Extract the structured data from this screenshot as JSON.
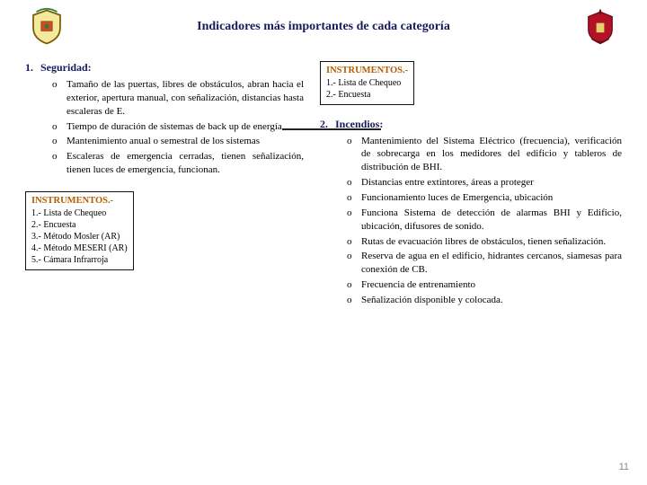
{
  "title": "Indicadores más importantes de cada categoría",
  "page_number": "11",
  "section1": {
    "num": "1.",
    "heading": "Seguridad:",
    "items": [
      "Tamaño de las puertas, libres de obstáculos, abran hacia el exterior, apertura manual, con señalización, distancias hasta escaleras de E.",
      "Tiempo de duración de sistemas de back up de energía",
      "Mantenimiento anual o semestral de los sistemas",
      "Escaleras de emergencia cerradas, tienen señalización, tienen luces de emergencia, funcionan."
    ]
  },
  "instruments_left": {
    "heading": "INSTRUMENTOS.-",
    "lines": [
      "1.- Lista de Chequeo",
      "2.- Encuesta",
      "3.- Método Mosler (AR)",
      "4.- Método MESERI (AR)",
      "5.- Cámara Infrarroja"
    ]
  },
  "instruments_right": {
    "heading": "INSTRUMENTOS.-",
    "lines": [
      "1.- Lista de Chequeo",
      "2.- Encuesta"
    ]
  },
  "section2": {
    "num": "2.",
    "heading": "Incendios:",
    "items": [
      "Mantenimiento del Sistema Eléctrico (frecuencia), verificación de sobrecarga en los medidores del edificio y tableros de distribución de BHI.",
      "Distancias entre extintores, áreas a proteger",
      "Funcionamiento luces de Emergencia, ubicación",
      "Funciona Sistema de detección de alarmas BHI y Edificio, ubicación, difusores de sonido.",
      "Rutas de evacuación libres de obstáculos, tienen señalización.",
      "Reserva de agua en el edificio, hidrantes cercanos, siamesas para conexión de CB.",
      "Frecuencia de entrenamiento",
      "Señalización disponible y colocada."
    ]
  }
}
